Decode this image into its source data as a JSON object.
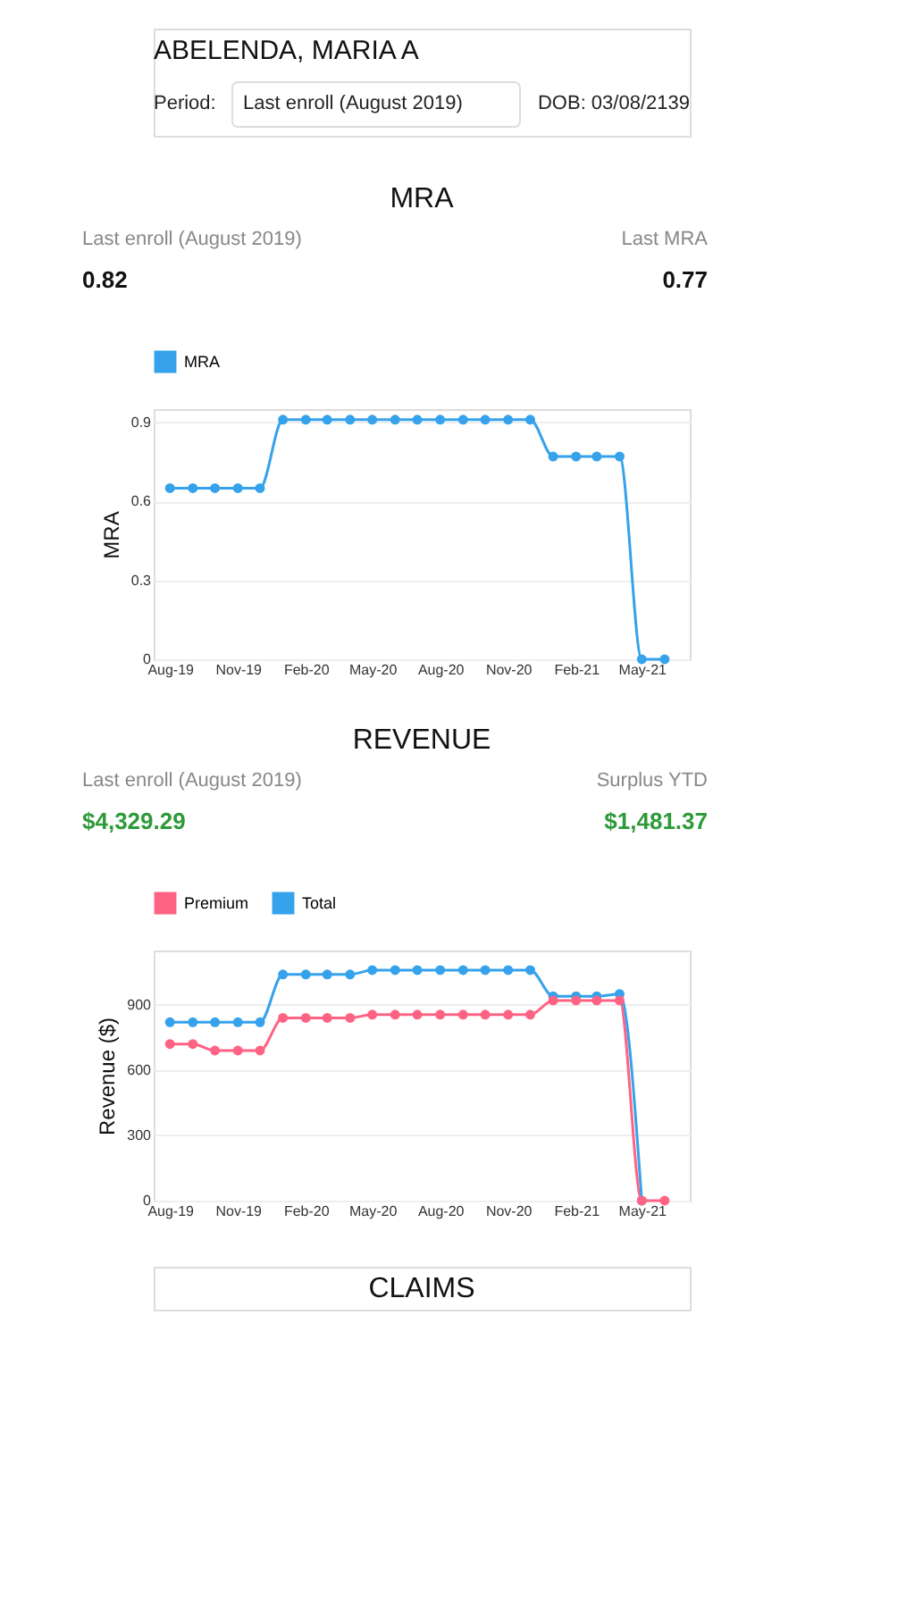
{
  "chart_data": [
    {
      "type": "other",
      "title": "ABELENDA, MARIA A",
      "annotations": [
        "Period:",
        "Last enroll (August 2019)",
        "DOB: 03/08/2139"
      ]
    },
    {
      "type": "line",
      "title": "MRA",
      "ylabel": "MRA",
      "annotations": [
        "Last enroll (August 2019)",
        "0.82",
        "Last MRA",
        "0.77"
      ],
      "x": [
        "2019-08",
        "2019-09",
        "2019-10",
        "2019-11",
        "2019-12",
        "2020-01",
        "2020-02",
        "2020-03",
        "2020-04",
        "2020-05",
        "2020-06",
        "2020-07",
        "2020-08",
        "2020-09",
        "2020-10",
        "2020-11",
        "2020-12",
        "2021-01",
        "2021-02",
        "2021-03",
        "2021-04",
        "2021-05",
        "2021-06"
      ],
      "series": [
        {
          "name": "MRA",
          "color": "#36a2eb",
          "values": [
            0.65,
            0.65,
            0.65,
            0.65,
            0.65,
            0.91,
            0.91,
            0.91,
            0.91,
            0.91,
            0.91,
            0.91,
            0.91,
            0.91,
            0.91,
            0.91,
            0.91,
            0.77,
            0.77,
            0.77,
            0.77,
            0,
            0
          ]
        }
      ],
      "xlim": [
        "2019-07-10",
        "2021-07-05"
      ],
      "xticks": [
        {
          "value": "2019-08",
          "label": "Aug-19"
        },
        {
          "value": "2019-11",
          "label": "Nov-19"
        },
        {
          "value": "2020-02",
          "label": "Feb-20"
        },
        {
          "value": "2020-05",
          "label": "May-20"
        },
        {
          "value": "2020-08",
          "label": "Aug-20"
        },
        {
          "value": "2020-11",
          "label": "Nov-20"
        },
        {
          "value": "2021-02",
          "label": "Feb-21"
        },
        {
          "value": "2021-05",
          "label": "May-21"
        }
      ],
      "ylim": [
        0,
        0.95
      ],
      "yticks": [
        0,
        0.3,
        0.6,
        0.9
      ],
      "grid": "y",
      "legend": "top",
      "marker": "circle",
      "line_style": "solid"
    },
    {
      "type": "line",
      "title": "REVENUE",
      "ylabel": "Revenue ($)",
      "annotations": [
        "Last enroll (August 2019)",
        "$4,329.29",
        "Surplus YTD",
        "$1,481.37"
      ],
      "x": [
        "2019-08",
        "2019-09",
        "2019-10",
        "2019-11",
        "2019-12",
        "2020-01",
        "2020-02",
        "2020-03",
        "2020-04",
        "2020-05",
        "2020-06",
        "2020-07",
        "2020-08",
        "2020-09",
        "2020-10",
        "2020-11",
        "2020-12",
        "2021-01",
        "2021-02",
        "2021-03",
        "2021-04",
        "2021-05",
        "2021-06"
      ],
      "series": [
        {
          "name": "Premium",
          "color": "#ff6384",
          "values": [
            720,
            720,
            690,
            690,
            690,
            840,
            840,
            840,
            840,
            855,
            855,
            855,
            855,
            855,
            855,
            855,
            855,
            920,
            920,
            920,
            920,
            0,
            0
          ]
        },
        {
          "name": "Total",
          "color": "#36a2eb",
          "values": [
            820,
            820,
            820,
            820,
            820,
            1040,
            1040,
            1040,
            1040,
            1060,
            1060,
            1060,
            1060,
            1060,
            1060,
            1060,
            1060,
            940,
            940,
            940,
            950,
            0,
            null
          ]
        }
      ],
      "xlim": [
        "2019-07-10",
        "2021-07-05"
      ],
      "xticks": [
        {
          "value": "2019-08",
          "label": "Aug-19"
        },
        {
          "value": "2019-11",
          "label": "Nov-19"
        },
        {
          "value": "2020-02",
          "label": "Feb-20"
        },
        {
          "value": "2020-05",
          "label": "May-20"
        },
        {
          "value": "2020-08",
          "label": "Aug-20"
        },
        {
          "value": "2020-11",
          "label": "Nov-20"
        },
        {
          "value": "2021-02",
          "label": "Feb-21"
        },
        {
          "value": "2021-05",
          "label": "May-21"
        }
      ],
      "ylim": [
        0,
        1150
      ],
      "yticks": [
        0,
        300,
        600,
        900
      ],
      "grid": "y",
      "legend": "top",
      "marker": "circle",
      "line_style": "solid"
    },
    {
      "type": "other",
      "title": "CLAIMS"
    }
  ]
}
